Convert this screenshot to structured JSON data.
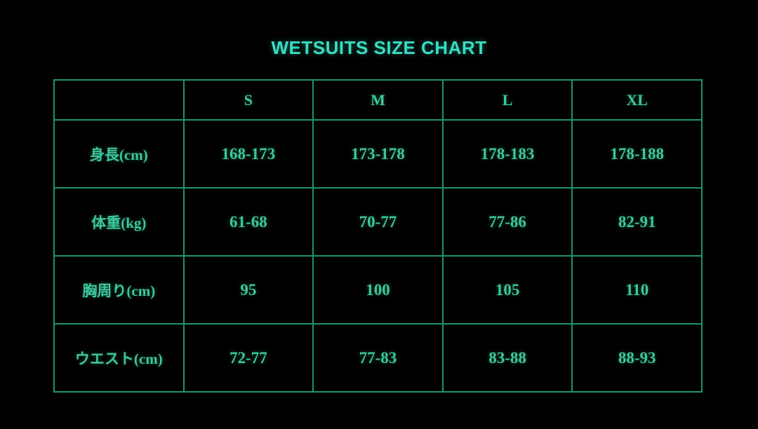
{
  "title": "WETSUITS SIZE CHART",
  "colors": {
    "background": "#000000",
    "title_text": "#38dcc2",
    "grid_line": "#1f9372",
    "cell_text": "#3cc79c"
  },
  "chart_data": {
    "type": "table",
    "title": "WETSUITS SIZE CHART",
    "columns": [
      "",
      "S",
      "M",
      "L",
      "XL"
    ],
    "rows": [
      {
        "label": "身長(cm)",
        "values": [
          "168-173",
          "173-178",
          "178-183",
          "178-188"
        ]
      },
      {
        "label": "体重(kg)",
        "values": [
          "61-68",
          "70-77",
          "77-86",
          "82-91"
        ]
      },
      {
        "label": "胸周り(cm)",
        "values": [
          "95",
          "100",
          "105",
          "110"
        ]
      },
      {
        "label": "ウエスト(cm)",
        "values": [
          "72-77",
          "77-83",
          "83-88",
          "88-93"
        ]
      }
    ]
  }
}
